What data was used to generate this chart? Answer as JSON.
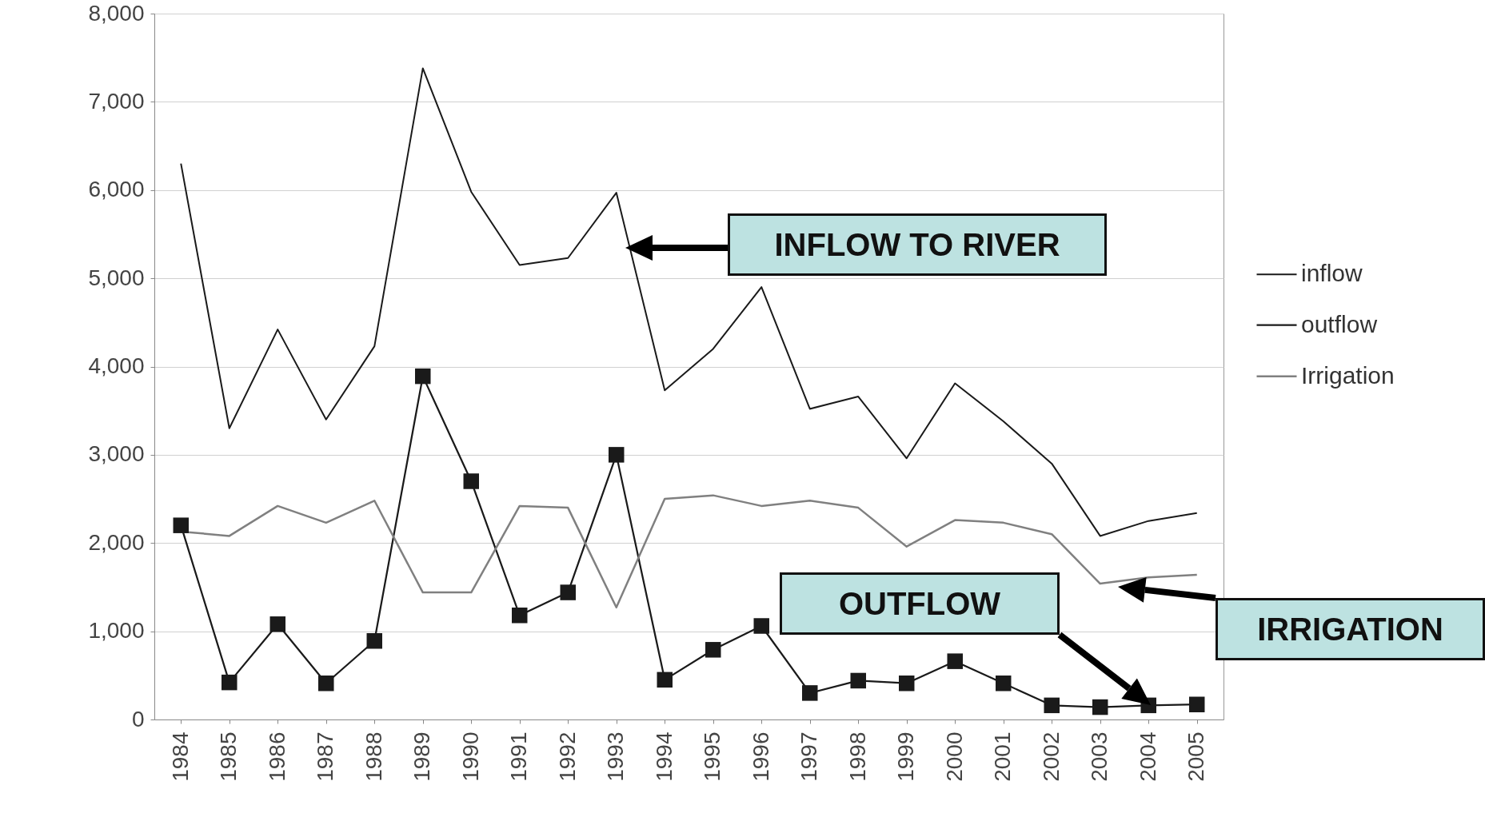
{
  "chart_data": {
    "type": "line",
    "categories": [
      "1984",
      "1985",
      "1986",
      "1987",
      "1988",
      "1989",
      "1990",
      "1991",
      "1992",
      "1993",
      "1994",
      "1995",
      "1996",
      "1997",
      "1998",
      "1999",
      "2000",
      "2001",
      "2002",
      "2003",
      "2004",
      "2005"
    ],
    "series": [
      {
        "name": "inflow",
        "color": "#1a1a1a",
        "marker": "none",
        "values": [
          6300,
          3300,
          4420,
          3400,
          4230,
          7380,
          5980,
          5150,
          5230,
          5970,
          3730,
          4200,
          4900,
          3520,
          3660,
          2960,
          3810,
          3380,
          2900,
          2080,
          2250,
          2340
        ]
      },
      {
        "name": "outflow",
        "color": "#1a1a1a",
        "marker": "square",
        "values": [
          2200,
          420,
          1080,
          410,
          890,
          3890,
          2700,
          1180,
          1440,
          3000,
          450,
          790,
          1060,
          300,
          440,
          410,
          660,
          410,
          160,
          140,
          160,
          170
        ]
      },
      {
        "name": "Irrigation",
        "color": "#808080",
        "marker": "none",
        "values": [
          2130,
          2080,
          2420,
          2230,
          2480,
          1440,
          1440,
          2420,
          2400,
          1270,
          2500,
          2540,
          2420,
          2480,
          2400,
          1960,
          2260,
          2230,
          2100,
          1540,
          1610,
          1640
        ]
      }
    ],
    "ylim": [
      0,
      8000
    ],
    "yticks": [
      {
        "value": 0,
        "label": "0"
      },
      {
        "value": 1000,
        "label": "1,000"
      },
      {
        "value": 2000,
        "label": "2,000"
      },
      {
        "value": 3000,
        "label": "3,000"
      },
      {
        "value": 4000,
        "label": "4,000"
      },
      {
        "value": 5000,
        "label": "5,000"
      },
      {
        "value": 6000,
        "label": "6,000"
      },
      {
        "value": 7000,
        "label": "7,000"
      },
      {
        "value": 8000,
        "label": "8,000"
      }
    ],
    "grid": "y",
    "legend": "right",
    "annotations": [
      "INFLOW TO RIVER",
      "OUTFLOW",
      "IRRIGATION"
    ]
  }
}
